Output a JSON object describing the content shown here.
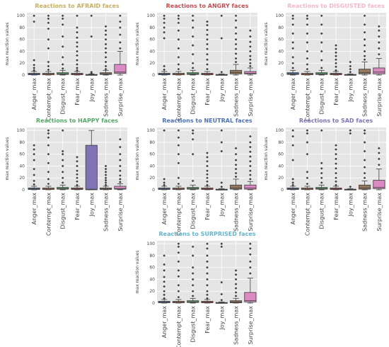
{
  "figure": {
    "categories": [
      "Anger_max",
      "Contempt_max",
      "Disgust_max",
      "Fear_max",
      "Joy_max",
      "Sadness_max",
      "Surprise_max"
    ],
    "box_colors": [
      "#5471a7",
      "#dd8452",
      "#55a868",
      "#c44e52",
      "#8172b3",
      "#937860",
      "#da8bc3"
    ]
  },
  "chart_data": [
    {
      "type": "box",
      "title": "Reactions to AFRAID faces",
      "title_color": "#c8ae62",
      "ylabel": "max reaction values",
      "ylim": [
        0,
        105
      ],
      "yticks": [
        0,
        20,
        40,
        60,
        80,
        100
      ],
      "grid": true,
      "categories": [
        "Anger_max",
        "Contempt_max",
        "Disgust_max",
        "Fear_max",
        "Joy_max",
        "Sadness_max",
        "Surprise_max"
      ],
      "boxes": [
        {
          "q1": 0.5,
          "median": 1.5,
          "q3": 3,
          "whisker_low": 0,
          "whisker_high": 6,
          "outliers": [
            8,
            12,
            17,
            25,
            90,
            100
          ]
        },
        {
          "q1": 0.5,
          "median": 1.5,
          "q3": 3,
          "whisker_low": 0,
          "whisker_high": 6,
          "outliers": [
            9,
            15,
            22,
            45,
            60,
            78,
            88,
            95,
            100
          ]
        },
        {
          "q1": 1,
          "median": 2,
          "q3": 4,
          "whisker_low": 0,
          "whisker_high": 8,
          "outliers": [
            11,
            18,
            30,
            48,
            65,
            85,
            95,
            100
          ]
        },
        {
          "q1": 0.5,
          "median": 1.5,
          "q3": 3,
          "whisker_low": 0,
          "whisker_high": 6,
          "outliers": [
            8,
            12,
            18,
            25,
            33,
            40,
            48,
            55,
            63,
            72,
            80,
            100
          ]
        },
        {
          "q1": 0.2,
          "median": 0.5,
          "q3": 1,
          "whisker_low": 0,
          "whisker_high": 2,
          "outliers": [
            3,
            5,
            65,
            100
          ]
        },
        {
          "q1": 1,
          "median": 2,
          "q3": 4,
          "whisker_low": 0,
          "whisker_high": 8,
          "outliers": [
            10,
            15,
            22,
            30,
            38,
            45,
            52,
            60,
            68,
            75,
            82
          ]
        },
        {
          "q1": 3,
          "median": 5,
          "q3": 18,
          "whisker_low": 0,
          "whisker_high": 40,
          "outliers": [
            45,
            55,
            68,
            80,
            90,
            100
          ]
        }
      ]
    },
    {
      "type": "box",
      "title": "Reactions to ANGRY faces",
      "title_color": "#c44e52",
      "ylabel": "max reaction values",
      "ylim": [
        0,
        105
      ],
      "yticks": [
        0,
        20,
        40,
        60,
        80,
        100
      ],
      "grid": true,
      "categories": [
        "Anger_max",
        "Contempt_max",
        "Disgust_max",
        "Fear_max",
        "Joy_max",
        "Sadness_max",
        "Surprise_max"
      ],
      "boxes": [
        {
          "q1": 0.5,
          "median": 1.5,
          "q3": 3,
          "whisker_low": 0,
          "whisker_high": 6,
          "outliers": [
            9,
            15,
            62,
            72,
            80,
            88,
            95,
            100
          ]
        },
        {
          "q1": 0.5,
          "median": 1.5,
          "q3": 3,
          "whisker_low": 0,
          "whisker_high": 6,
          "outliers": [
            10,
            18,
            30,
            45,
            60,
            75,
            88,
            95,
            100
          ]
        },
        {
          "q1": 1,
          "median": 2,
          "q3": 4,
          "whisker_low": 0,
          "whisker_high": 8,
          "outliers": [
            12,
            20,
            35,
            50,
            65,
            80,
            92,
            100
          ]
        },
        {
          "q1": 0.5,
          "median": 1.5,
          "q3": 3,
          "whisker_low": 0,
          "whisker_high": 6,
          "outliers": [
            10,
            18,
            26,
            35,
            44,
            52,
            60,
            68,
            76,
            84,
            90
          ]
        },
        {
          "q1": 0.2,
          "median": 0.5,
          "q3": 1,
          "whisker_low": 0,
          "whisker_high": 2,
          "outliers": [
            5,
            62,
            100
          ]
        },
        {
          "q1": 2,
          "median": 4,
          "q3": 8,
          "whisker_low": 0,
          "whisker_high": 18,
          "outliers": [
            22,
            28,
            36,
            44,
            52,
            60,
            70,
            80,
            92,
            100
          ]
        },
        {
          "q1": 2,
          "median": 3,
          "q3": 6,
          "whisker_low": 0,
          "whisker_high": 12,
          "outliers": [
            15,
            20,
            26,
            32,
            40,
            48,
            56,
            65,
            75
          ]
        }
      ]
    },
    {
      "type": "box",
      "title": "Reactions to DISGUSTED faces",
      "title_color": "#f3b8c6",
      "ylabel": "max reaction values",
      "ylim": [
        0,
        105
      ],
      "yticks": [
        0,
        20,
        40,
        60,
        80,
        100
      ],
      "grid": true,
      "categories": [
        "Anger_max",
        "Contempt_max",
        "Disgust_max",
        "Fear_max",
        "Joy_max",
        "Sadness_max",
        "Surprise_max"
      ],
      "boxes": [
        {
          "q1": 1,
          "median": 2,
          "q3": 4,
          "whisker_low": 0,
          "whisker_high": 8,
          "outliers": [
            12,
            20,
            30,
            45,
            55,
            70,
            85,
            95,
            100
          ]
        },
        {
          "q1": 0.5,
          "median": 1.5,
          "q3": 3,
          "whisker_low": 0,
          "whisker_high": 6,
          "outliers": [
            10,
            18,
            28,
            40,
            55,
            70,
            85,
            95,
            100
          ]
        },
        {
          "q1": 1,
          "median": 2,
          "q3": 4,
          "whisker_low": 0,
          "whisker_high": 8,
          "outliers": [
            12,
            25,
            40,
            55,
            70,
            85,
            100
          ]
        },
        {
          "q1": 0.5,
          "median": 1.5,
          "q3": 3,
          "whisker_low": 0,
          "whisker_high": 6,
          "outliers": [
            8,
            14,
            20,
            26,
            32,
            38,
            44,
            50
          ]
        },
        {
          "q1": 0.2,
          "median": 0.5,
          "q3": 1,
          "whisker_low": 0,
          "whisker_high": 2,
          "outliers": [
            5,
            10,
            15,
            22
          ]
        },
        {
          "q1": 2,
          "median": 4,
          "q3": 10,
          "whisker_low": 0,
          "whisker_high": 22,
          "outliers": [
            26,
            32,
            40,
            50,
            60,
            72,
            85,
            100
          ]
        },
        {
          "q1": 2,
          "median": 5,
          "q3": 12,
          "whisker_low": 0,
          "whisker_high": 28,
          "outliers": [
            35,
            45,
            55,
            65,
            75,
            82
          ]
        }
      ]
    },
    {
      "type": "box",
      "title": "Reactions to HAPPY faces",
      "title_color": "#55a868",
      "ylabel": "max reaction values",
      "ylim": [
        0,
        105
      ],
      "yticks": [
        0,
        20,
        40,
        60,
        80,
        100
      ],
      "grid": true,
      "categories": [
        "Anger_max",
        "Contempt_max",
        "Disgust_max",
        "Fear_max",
        "Joy_max",
        "Sadness_max",
        "Surprise_max"
      ],
      "boxes": [
        {
          "q1": 0.5,
          "median": 1.5,
          "q3": 3,
          "whisker_low": 0,
          "whisker_high": 6,
          "outliers": [
            9,
            15,
            25,
            35,
            50,
            60,
            68,
            75
          ]
        },
        {
          "q1": 0.5,
          "median": 1.5,
          "q3": 3,
          "whisker_low": 0,
          "whisker_high": 6,
          "outliers": [
            10,
            18,
            30,
            45,
            60,
            75,
            88,
            95,
            100
          ]
        },
        {
          "q1": 1,
          "median": 2,
          "q3": 4,
          "whisker_low": 0,
          "whisker_high": 8,
          "outliers": [
            12,
            20,
            30,
            40,
            50,
            60,
            65,
            100
          ]
        },
        {
          "q1": 0.5,
          "median": 1.5,
          "q3": 3,
          "whisker_low": 0,
          "whisker_high": 6,
          "outliers": [
            8,
            14,
            20,
            26,
            32,
            40,
            48,
            55
          ]
        },
        {
          "q1": 0,
          "median": 1,
          "q3": 75,
          "whisker_low": 0,
          "whisker_high": 100,
          "outliers": []
        },
        {
          "q1": 0.5,
          "median": 1.5,
          "q3": 3,
          "whisker_low": 0,
          "whisker_high": 6,
          "outliers": [
            8,
            12,
            16,
            20,
            25,
            30,
            35,
            40
          ]
        },
        {
          "q1": 1,
          "median": 2,
          "q3": 6,
          "whisker_low": 0,
          "whisker_high": 10,
          "outliers": [
            13,
            18,
            24,
            32,
            40,
            50,
            60,
            72,
            85
          ]
        }
      ]
    },
    {
      "type": "box",
      "title": "Reactions to NEUTRAL faces",
      "title_color": "#4c72b0",
      "ylabel": "max reaction values",
      "ylim": [
        0,
        105
      ],
      "yticks": [
        0,
        20,
        40,
        60,
        80,
        100
      ],
      "grid": true,
      "categories": [
        "Anger_max",
        "Contempt_max",
        "Disgust_max",
        "Fear_max",
        "Joy_max",
        "Sadness_max",
        "Surprise_max"
      ],
      "boxes": [
        {
          "q1": 0.5,
          "median": 1.5,
          "q3": 3,
          "whisker_low": 0,
          "whisker_high": 6,
          "outliers": [
            8,
            12,
            18,
            100
          ]
        },
        {
          "q1": 0.5,
          "median": 1.5,
          "q3": 3,
          "whisker_low": 0,
          "whisker_high": 6,
          "outliers": [
            10,
            20,
            45,
            60,
            75,
            88,
            100
          ]
        },
        {
          "q1": 1,
          "median": 2,
          "q3": 4,
          "whisker_low": 0,
          "whisker_high": 8,
          "outliers": [
            15,
            60,
            85,
            95,
            100
          ]
        },
        {
          "q1": 0.5,
          "median": 1.5,
          "q3": 3,
          "whisker_low": 0,
          "whisker_high": 6,
          "outliers": [
            8,
            14,
            20,
            26,
            32,
            40,
            48,
            55,
            62
          ]
        },
        {
          "q1": 0.2,
          "median": 0.5,
          "q3": 1,
          "whisker_low": 0,
          "whisker_high": 2,
          "outliers": [
            5,
            12,
            65,
            80,
            100
          ]
        },
        {
          "q1": 1,
          "median": 3,
          "q3": 8,
          "whisker_low": 0,
          "whisker_high": 18,
          "outliers": [
            22,
            28,
            35,
            42,
            50,
            60,
            70
          ]
        },
        {
          "q1": 1,
          "median": 3,
          "q3": 8,
          "whisker_low": 0,
          "whisker_high": 14,
          "outliers": [
            18,
            25,
            32,
            40,
            48,
            56,
            64,
            72,
            80,
            90
          ]
        }
      ]
    },
    {
      "type": "box",
      "title": "Reactions to SAD faces",
      "title_color": "#8172b3",
      "ylabel": "max reaction values",
      "ylim": [
        0,
        105
      ],
      "yticks": [
        0,
        20,
        40,
        60,
        80,
        100
      ],
      "grid": true,
      "categories": [
        "Anger_max",
        "Contempt_max",
        "Disgust_max",
        "Fear_max",
        "Joy_max",
        "Sadness_max",
        "Surprise_max"
      ],
      "boxes": [
        {
          "q1": 0.5,
          "median": 1.5,
          "q3": 3,
          "whisker_low": 0,
          "whisker_high": 6,
          "outliers": [
            8,
            12,
            18,
            50,
            75,
            90,
            100
          ]
        },
        {
          "q1": 0.5,
          "median": 1.5,
          "q3": 3,
          "whisker_low": 0,
          "whisker_high": 6,
          "outliers": [
            10,
            20,
            30,
            60,
            80,
            95,
            100
          ]
        },
        {
          "q1": 1,
          "median": 2,
          "q3": 4,
          "whisker_low": 0,
          "whisker_high": 8,
          "outliers": [
            12,
            20,
            28,
            36,
            45,
            100
          ]
        },
        {
          "q1": 0.5,
          "median": 1.5,
          "q3": 3,
          "whisker_low": 0,
          "whisker_high": 6,
          "outliers": [
            8,
            14,
            20,
            28,
            36,
            44,
            52,
            60,
            68,
            75
          ]
        },
        {
          "q1": 0.2,
          "median": 0.5,
          "q3": 1,
          "whisker_low": 0,
          "whisker_high": 2,
          "outliers": [
            5,
            95,
            100
          ]
        },
        {
          "q1": 1,
          "median": 3,
          "q3": 8,
          "whisker_low": 0,
          "whisker_high": 15,
          "outliers": [
            20,
            28,
            38,
            50,
            65,
            80,
            95,
            100
          ]
        },
        {
          "q1": 2,
          "median": 4,
          "q3": 16,
          "whisker_low": 0,
          "whisker_high": 35,
          "outliers": [
            42,
            52,
            62,
            70
          ]
        }
      ]
    },
    {
      "type": "box",
      "title": "Reactions to SURPRISED faces",
      "title_color": "#64b5cd",
      "ylabel": "max reaction values",
      "ylim": [
        0,
        105
      ],
      "yticks": [
        0,
        20,
        40,
        60,
        80,
        100
      ],
      "grid": true,
      "categories": [
        "Anger_max",
        "Contempt_max",
        "Disgust_max",
        "Fear_max",
        "Joy_max",
        "Sadness_max",
        "Surprise_max"
      ],
      "boxes": [
        {
          "q1": 0.5,
          "median": 1.5,
          "q3": 3,
          "whisker_low": 0,
          "whisker_high": 6,
          "outliers": [
            8,
            14,
            20,
            28,
            36,
            44,
            55,
            65,
            80
          ]
        },
        {
          "q1": 0.5,
          "median": 1.5,
          "q3": 3,
          "whisker_low": 0,
          "whisker_high": 6,
          "outliers": [
            10,
            20,
            30,
            45,
            55,
            70,
            85,
            95,
            100
          ]
        },
        {
          "q1": 1,
          "median": 2,
          "q3": 4,
          "whisker_low": 0,
          "whisker_high": 8,
          "outliers": [
            12,
            20,
            30,
            40,
            50,
            60,
            80,
            95
          ]
        },
        {
          "q1": 0.5,
          "median": 1.5,
          "q3": 3,
          "whisker_low": 0,
          "whisker_high": 6,
          "outliers": [
            8,
            14,
            20,
            30,
            40,
            50,
            60,
            70,
            80,
            92,
            100
          ]
        },
        {
          "q1": 0.2,
          "median": 0.5,
          "q3": 1,
          "whisker_low": 0,
          "whisker_high": 2,
          "outliers": [
            5,
            15,
            35,
            95,
            100
          ]
        },
        {
          "q1": 0.5,
          "median": 2,
          "q3": 4,
          "whisker_low": 0,
          "whisker_high": 8,
          "outliers": [
            12,
            18,
            25,
            32,
            40,
            48,
            55
          ]
        },
        {
          "q1": 2,
          "median": 4,
          "q3": 18,
          "whisker_low": 0,
          "whisker_high": 42,
          "outliers": [
            50,
            60,
            70,
            82,
            92,
            100
          ]
        }
      ]
    }
  ]
}
